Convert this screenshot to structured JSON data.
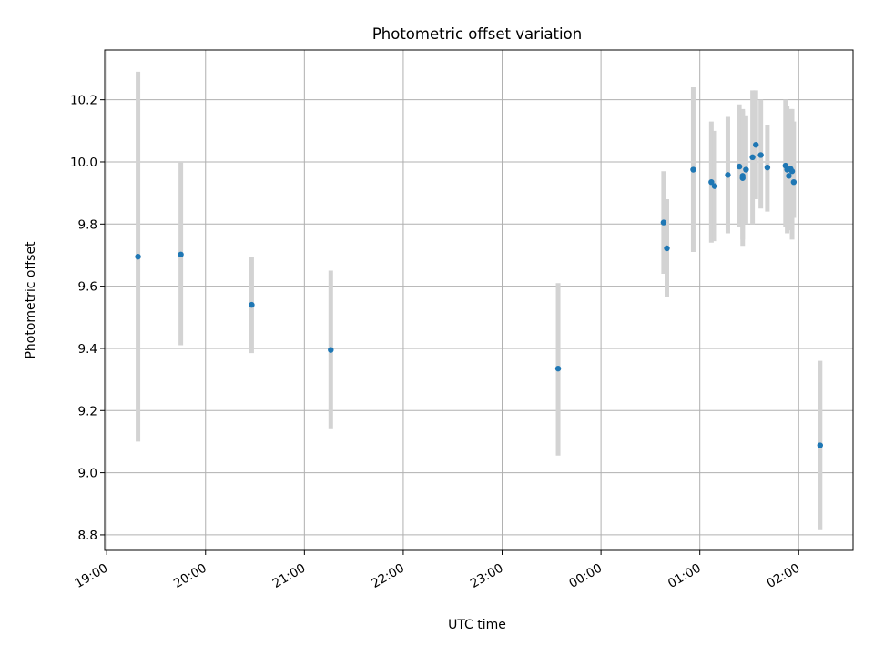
{
  "chart_data": {
    "type": "scatter",
    "title": "Photometric offset variation",
    "xlabel": "UTC time",
    "ylabel": "Photometric offset",
    "x_ticks": [
      {
        "label": "19:00",
        "hours": 0
      },
      {
        "label": "20:00",
        "hours": 1
      },
      {
        "label": "21:00",
        "hours": 2
      },
      {
        "label": "22:00",
        "hours": 3
      },
      {
        "label": "23:00",
        "hours": 4
      },
      {
        "label": "00:00",
        "hours": 5
      },
      {
        "label": "01:00",
        "hours": 6
      },
      {
        "label": "02:00",
        "hours": 7
      }
    ],
    "xlim_hours": [
      -0.02,
      7.55
    ],
    "ylim": [
      8.75,
      10.36
    ],
    "y_ticks": [
      8.8,
      9.0,
      9.2,
      9.4,
      9.6,
      9.8,
      10.0,
      10.2
    ],
    "grid": true,
    "colors": {
      "point": "#1f77b4",
      "errorbar": "#d3d3d3",
      "grid": "#b0b0b0"
    },
    "points": [
      {
        "t": "19:19",
        "y": 9.695,
        "lo": 9.1,
        "hi": 10.29
      },
      {
        "t": "19:45",
        "y": 9.702,
        "lo": 9.41,
        "hi": 10.0
      },
      {
        "t": "20:28",
        "y": 9.54,
        "lo": 9.385,
        "hi": 9.695
      },
      {
        "t": "21:16",
        "y": 9.395,
        "lo": 9.14,
        "hi": 9.65
      },
      {
        "t": "23:34",
        "y": 9.335,
        "lo": 9.055,
        "hi": 9.61
      },
      {
        "t": "00:38",
        "y": 9.805,
        "lo": 9.64,
        "hi": 9.97
      },
      {
        "t": "00:40",
        "y": 9.722,
        "lo": 9.565,
        "hi": 9.88
      },
      {
        "t": "00:56",
        "y": 9.975,
        "lo": 9.71,
        "hi": 10.24
      },
      {
        "t": "01:07",
        "y": 9.935,
        "lo": 9.74,
        "hi": 10.13
      },
      {
        "t": "01:09",
        "y": 9.922,
        "lo": 9.745,
        "hi": 10.1
      },
      {
        "t": "01:17",
        "y": 9.958,
        "lo": 9.77,
        "hi": 10.145
      },
      {
        "t": "01:24",
        "y": 9.985,
        "lo": 9.79,
        "hi": 10.185
      },
      {
        "t": "01:26",
        "y": 9.955,
        "lo": 9.75,
        "hi": 10.165
      },
      {
        "t": "01:26",
        "y": 9.948,
        "lo": 9.73,
        "hi": 10.17
      },
      {
        "t": "01:28",
        "y": 9.975,
        "lo": 9.8,
        "hi": 10.15
      },
      {
        "t": "01:32",
        "y": 10.015,
        "lo": 9.8,
        "hi": 10.23
      },
      {
        "t": "01:34",
        "y": 10.055,
        "lo": 9.88,
        "hi": 10.23
      },
      {
        "t": "01:37",
        "y": 10.022,
        "lo": 9.85,
        "hi": 10.2
      },
      {
        "t": "01:41",
        "y": 9.982,
        "lo": 9.84,
        "hi": 10.12
      },
      {
        "t": "01:52",
        "y": 9.988,
        "lo": 9.79,
        "hi": 10.2
      },
      {
        "t": "01:53",
        "y": 9.975,
        "lo": 9.77,
        "hi": 10.18
      },
      {
        "t": "01:54",
        "y": 9.955,
        "lo": 9.78,
        "hi": 10.15
      },
      {
        "t": "01:55",
        "y": 9.978,
        "lo": 9.79,
        "hi": 10.17
      },
      {
        "t": "01:56",
        "y": 9.97,
        "lo": 9.75,
        "hi": 10.17
      },
      {
        "t": "01:57",
        "y": 9.935,
        "lo": 9.82,
        "hi": 10.13
      },
      {
        "t": "02:13",
        "y": 9.088,
        "lo": 8.815,
        "hi": 9.36
      }
    ]
  }
}
